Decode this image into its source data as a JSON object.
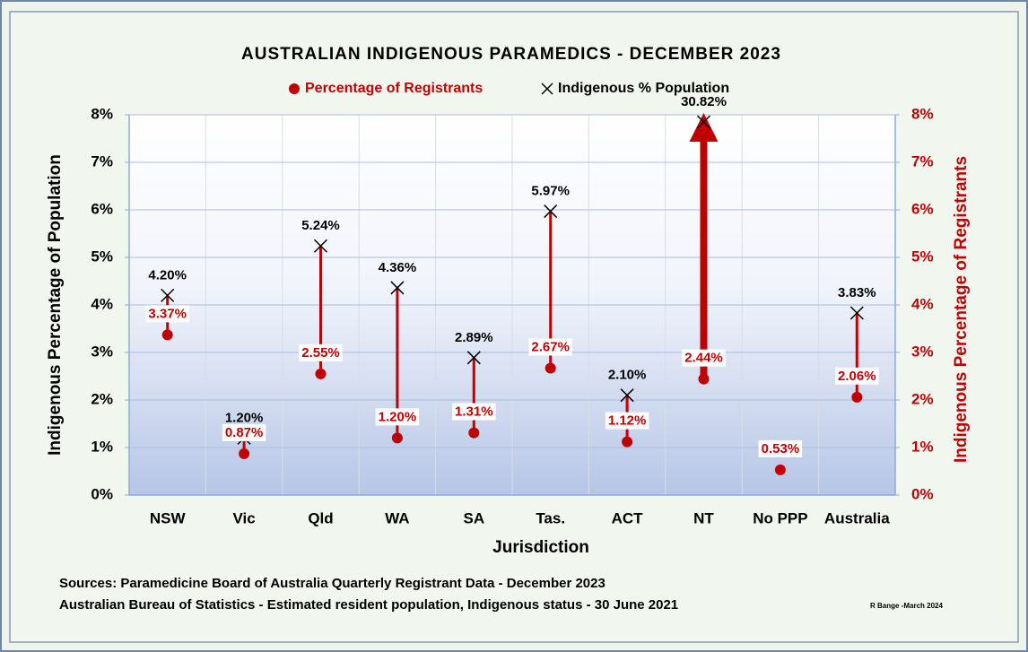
{
  "chart_data": {
    "type": "dropline",
    "title": "AUSTRALIAN INDIGENOUS PARAMEDICS - DECEMBER 2023",
    "x_label": "Jurisdiction",
    "y_label": "Indigenous Percentage of Population",
    "y2_label": "Indigenous Percentage of Registrants",
    "categories": [
      "NSW",
      "Vic",
      "Qld",
      "WA",
      "SA",
      "Tas.",
      "ACT",
      "NT",
      "No PPP",
      "Australia"
    ],
    "series": [
      {
        "name": "Percentage of Registrants",
        "color": "#c00000",
        "marker": "circle",
        "axis": "y2",
        "values": [
          3.37,
          0.87,
          2.55,
          1.2,
          1.31,
          2.67,
          1.12,
          2.44,
          0.53,
          2.06
        ],
        "value_labels": [
          "3.37%",
          "0.87%",
          "2.55%",
          "1.20%",
          "1.31%",
          "2.67%",
          "1.12%",
          "2.44%",
          "0.53%",
          "2.06%"
        ]
      },
      {
        "name": "Indigenous % Population",
        "color": "#000000",
        "marker": "x",
        "values": [
          4.2,
          1.2,
          5.24,
          4.36,
          2.89,
          5.97,
          2.1,
          30.82,
          null,
          3.83
        ],
        "value_labels": [
          "4.20%",
          "1.20%",
          "5.24%",
          "4.36%",
          "2.89%",
          "5.97%",
          "2.10%",
          "30.82%",
          null,
          "3.83%"
        ]
      }
    ],
    "ylim": [
      0,
      8
    ],
    "yticks": [
      {
        "value": 0,
        "label": "0%"
      },
      {
        "value": 1,
        "label": "1%"
      },
      {
        "value": 2,
        "label": "2%"
      },
      {
        "value": 3,
        "label": "3%"
      },
      {
        "value": 4,
        "label": "4%"
      },
      {
        "value": 5,
        "label": "5%"
      },
      {
        "value": 6,
        "label": "6%"
      },
      {
        "value": 7,
        "label": "7%"
      },
      {
        "value": 8,
        "label": "8%"
      }
    ],
    "y2lim": [
      0,
      8
    ],
    "y2ticks": [
      {
        "value": 0,
        "label": "0%"
      },
      {
        "value": 1,
        "label": "1%"
      },
      {
        "value": 2,
        "label": "2%"
      },
      {
        "value": 3,
        "label": "3%"
      },
      {
        "value": 4,
        "label": "4%"
      },
      {
        "value": 5,
        "label": "5%"
      },
      {
        "value": 6,
        "label": "6%"
      },
      {
        "value": 7,
        "label": "7%"
      },
      {
        "value": 8,
        "label": "8%"
      }
    ],
    "grid": true,
    "legend": "top",
    "sources": [
      "Sources: Paramedicine Board of Australia Quarterly Registrant Data - December 2023",
      "Australian Bureau of Statistics - Estimated resident population, Indigenous status - 30 June 2021"
    ],
    "credit": "R Bange -March 2024"
  }
}
